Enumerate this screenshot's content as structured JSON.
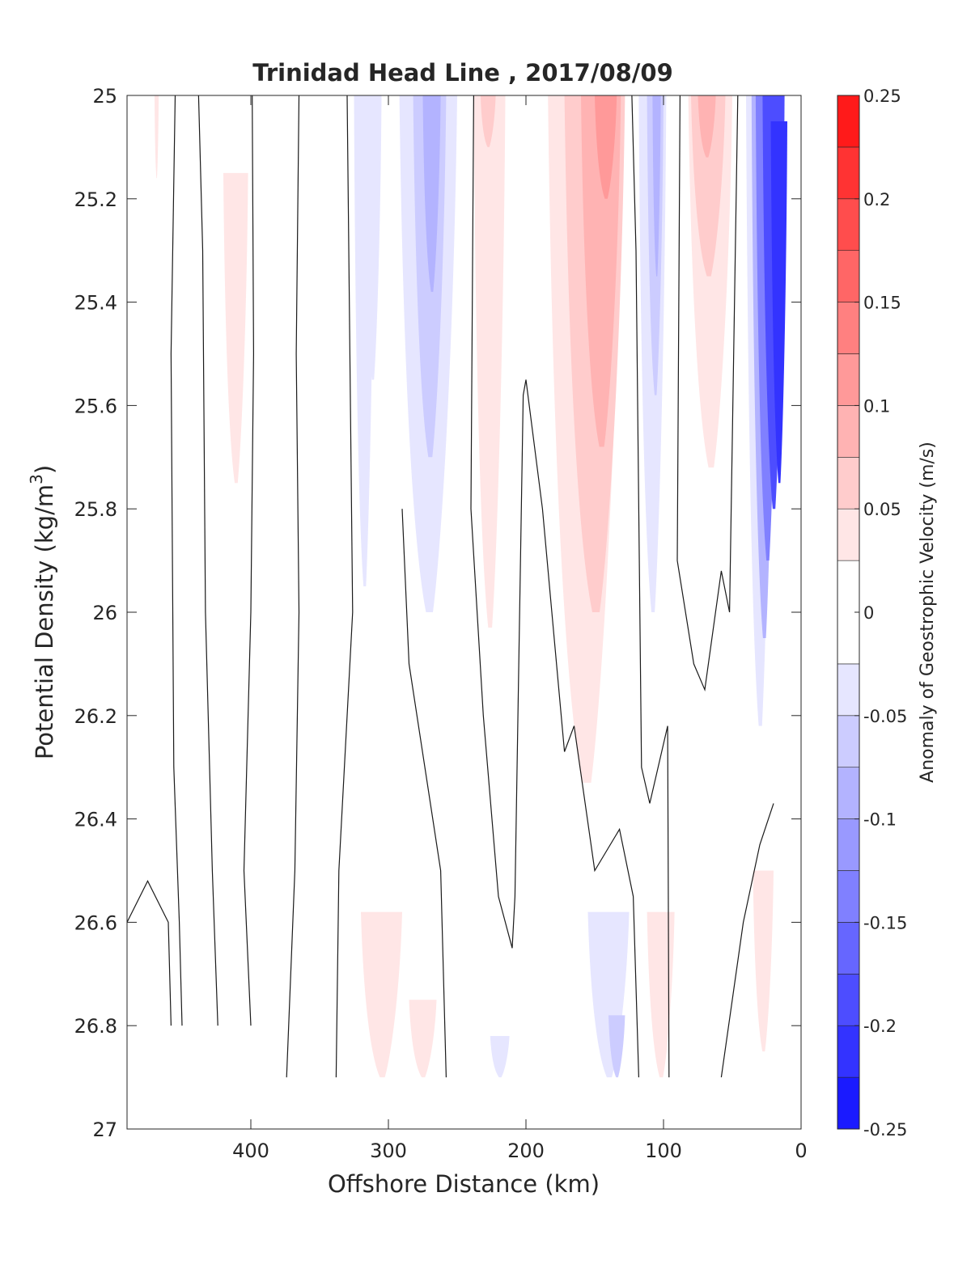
{
  "chart_data": {
    "type": "heatmap",
    "title": "Trinidad Head Line , 2017/08/09",
    "xlabel": "Offshore Distance (km)",
    "ylabel": "Potential Density (kg/m3)",
    "ylabel_main": "Potential Density (kg/m",
    "ylabel_sup": "3",
    "ylabel_end": ")",
    "colorbar_label": "Anomaly of Geostrophic Velocity (m/s)",
    "xlim": [
      490,
      0
    ],
    "x_reversed": true,
    "ylim": [
      25,
      27
    ],
    "y_reversed": true,
    "x_ticks": [
      400,
      300,
      200,
      100,
      0
    ],
    "x_tick_labels": [
      "400",
      "300",
      "200",
      "100",
      "0"
    ],
    "y_ticks": [
      25,
      25.2,
      25.4,
      25.6,
      25.8,
      26,
      26.2,
      26.4,
      26.6,
      26.8,
      27
    ],
    "y_tick_labels": [
      "25",
      "25.2",
      "25.4",
      "25.6",
      "25.8",
      "26",
      "26.2",
      "26.4",
      "26.6",
      "26.8",
      "27"
    ],
    "colorbar_levels": [
      -0.25,
      -0.225,
      -0.2,
      -0.175,
      -0.15,
      -0.125,
      -0.1,
      -0.075,
      -0.05,
      -0.025,
      0.025,
      0.05,
      0.075,
      0.1,
      0.125,
      0.15,
      0.175,
      0.2,
      0.225,
      0.25
    ],
    "colorbar_colors": [
      "#0000ff",
      "#1a1aff",
      "#3333ff",
      "#4d4dff",
      "#6666ff",
      "#8080ff",
      "#9999ff",
      "#b3b3ff",
      "#ccccff",
      "#e6e6ff",
      "#ffffff",
      "#ffe6e6",
      "#ffcccc",
      "#ffb3b3",
      "#ff9999",
      "#ff8080",
      "#ff6666",
      "#ff4d4d",
      "#ff3333",
      "#ff1a1a",
      "#ff0000"
    ],
    "colorbar_ticks": [
      0.25,
      0.2,
      0.15,
      0.1,
      0.05,
      0,
      -0.05,
      -0.1,
      -0.15,
      -0.2,
      -0.25
    ],
    "colorbar_tick_labels": [
      "0.25",
      "0.2",
      "0.15",
      "0.1",
      "0.05",
      "0",
      "-0.05",
      "-0.1",
      "-0.15",
      "-0.2",
      "-0.25"
    ],
    "cells": [
      {
        "x": [
          470,
          467
        ],
        "y": [
          25.0,
          25.16
        ],
        "v": 0.03
      },
      {
        "x": [
          420,
          402
        ],
        "y": [
          25.15,
          25.75
        ],
        "v": 0.03
      },
      {
        "x": [
          325,
          310
        ],
        "y": [
          25.0,
          25.95
        ],
        "v": -0.03
      },
      {
        "x": [
          318,
          305
        ],
        "y": [
          25.0,
          25.55
        ],
        "v": -0.05
      },
      {
        "x": [
          292,
          250
        ],
        "y": [
          25.0,
          26.0
        ],
        "v": -0.03
      },
      {
        "x": [
          282,
          258
        ],
        "y": [
          25.0,
          25.7
        ],
        "v": -0.06
      },
      {
        "x": [
          275,
          262
        ],
        "y": [
          25.0,
          25.38
        ],
        "v": -0.08
      },
      {
        "x": [
          238,
          215
        ],
        "y": [
          25.0,
          26.03
        ],
        "v": 0.03
      },
      {
        "x": [
          233,
          222
        ],
        "y": [
          25.0,
          25.1
        ],
        "v": 0.05
      },
      {
        "x": [
          184,
          130
        ],
        "y": [
          25.0,
          26.33
        ],
        "v": 0.03
      },
      {
        "x": [
          172,
          128
        ],
        "y": [
          25.0,
          26.0
        ],
        "v": 0.06
      },
      {
        "x": [
          160,
          131
        ],
        "y": [
          25.0,
          25.68
        ],
        "v": 0.09
      },
      {
        "x": [
          150,
          134
        ],
        "y": [
          25.0,
          25.2
        ],
        "v": 0.11
      },
      {
        "x": [
          118,
          98
        ],
        "y": [
          25.0,
          26.0
        ],
        "v": -0.03
      },
      {
        "x": [
          112,
          100
        ],
        "y": [
          25.0,
          25.58
        ],
        "v": -0.07
      },
      {
        "x": [
          108,
          102
        ],
        "y": [
          25.0,
          25.35
        ],
        "v": -0.1
      },
      {
        "x": [
          82,
          50
        ],
        "y": [
          25.0,
          25.72
        ],
        "v": 0.03
      },
      {
        "x": [
          80,
          55
        ],
        "y": [
          25.0,
          25.35
        ],
        "v": 0.07
      },
      {
        "x": [
          75,
          62
        ],
        "y": [
          25.0,
          25.12
        ],
        "v": 0.09
      },
      {
        "x": [
          40,
          20
        ],
        "y": [
          25.0,
          26.22
        ],
        "v": -0.03
      },
      {
        "x": [
          36,
          18
        ],
        "y": [
          25.0,
          26.05
        ],
        "v": -0.08
      },
      {
        "x": [
          33,
          16
        ],
        "y": [
          25.0,
          25.9
        ],
        "v": -0.13
      },
      {
        "x": [
          28,
          12
        ],
        "y": [
          25.0,
          25.8
        ],
        "v": -0.18
      },
      {
        "x": [
          22,
          10
        ],
        "y": [
          25.05,
          25.75
        ],
        "v": -0.22
      },
      {
        "x": [
          320,
          290
        ],
        "y": [
          26.58,
          26.9
        ],
        "v": 0.03
      },
      {
        "x": [
          285,
          265
        ],
        "y": [
          26.75,
          26.9
        ],
        "v": 0.03
      },
      {
        "x": [
          226,
          212
        ],
        "y": [
          26.82,
          26.9
        ],
        "v": -0.03
      },
      {
        "x": [
          155,
          125
        ],
        "y": [
          26.58,
          26.9
        ],
        "v": -0.03
      },
      {
        "x": [
          140,
          128
        ],
        "y": [
          26.78,
          26.9
        ],
        "v": -0.06
      },
      {
        "x": [
          112,
          92
        ],
        "y": [
          26.58,
          26.9
        ],
        "v": 0.03
      },
      {
        "x": [
          35,
          20
        ],
        "y": [
          26.5,
          26.85
        ],
        "v": 0.03
      },
      {
        "x": [
          478,
          470
        ],
        "y": [
          26.8,
          26.88
        ],
        "v": -0.02
      }
    ],
    "zero_contours": [
      [
        [
          455,
          25.0
        ],
        [
          458,
          25.5
        ],
        [
          456,
          26.3
        ],
        [
          452,
          26.6
        ],
        [
          450,
          26.8
        ]
      ],
      [
        [
          438,
          25.0
        ],
        [
          435,
          25.3
        ],
        [
          433,
          26.0
        ],
        [
          428,
          26.5
        ],
        [
          424,
          26.8
        ]
      ],
      [
        [
          399,
          25.0
        ],
        [
          398,
          25.5
        ],
        [
          400,
          26.0
        ],
        [
          405,
          26.5
        ],
        [
          400,
          26.8
        ]
      ],
      [
        [
          365,
          25.0
        ],
        [
          367,
          25.5
        ],
        [
          365,
          26.0
        ],
        [
          368,
          26.5
        ],
        [
          374,
          26.9
        ]
      ],
      [
        [
          330,
          25.0
        ],
        [
          328,
          25.5
        ],
        [
          326,
          26.0
        ],
        [
          336,
          26.5
        ],
        [
          338,
          26.9
        ]
      ],
      [
        [
          238,
          25.0
        ],
        [
          240,
          25.8
        ],
        [
          231,
          26.2
        ],
        [
          220,
          26.55
        ],
        [
          210,
          26.65
        ],
        [
          208,
          26.55
        ],
        [
          202,
          25.58
        ],
        [
          200,
          25.55
        ],
        [
          188,
          25.8
        ],
        [
          172,
          26.27
        ],
        [
          165,
          26.22
        ],
        [
          150,
          26.5
        ],
        [
          132,
          26.42
        ],
        [
          122,
          26.55
        ],
        [
          118,
          26.9
        ]
      ],
      [
        [
          290,
          25.8
        ],
        [
          285,
          26.1
        ],
        [
          262,
          26.5
        ],
        [
          258,
          26.9
        ]
      ],
      [
        [
          123,
          25.0
        ],
        [
          120,
          25.3
        ],
        [
          116,
          26.3
        ],
        [
          110,
          26.37
        ],
        [
          97,
          26.22
        ],
        [
          96,
          26.9
        ]
      ],
      [
        [
          88,
          25.0
        ],
        [
          90,
          25.9
        ],
        [
          78,
          26.1
        ],
        [
          70,
          26.15
        ],
        [
          58,
          25.92
        ],
        [
          52,
          26.0
        ],
        [
          46,
          25.0
        ]
      ],
      [
        [
          20,
          26.37
        ],
        [
          30,
          26.45
        ],
        [
          42,
          26.6
        ],
        [
          58,
          26.9
        ]
      ],
      [
        [
          490,
          26.6
        ],
        [
          475,
          26.52
        ],
        [
          460,
          26.6
        ],
        [
          458,
          26.8
        ]
      ]
    ]
  }
}
